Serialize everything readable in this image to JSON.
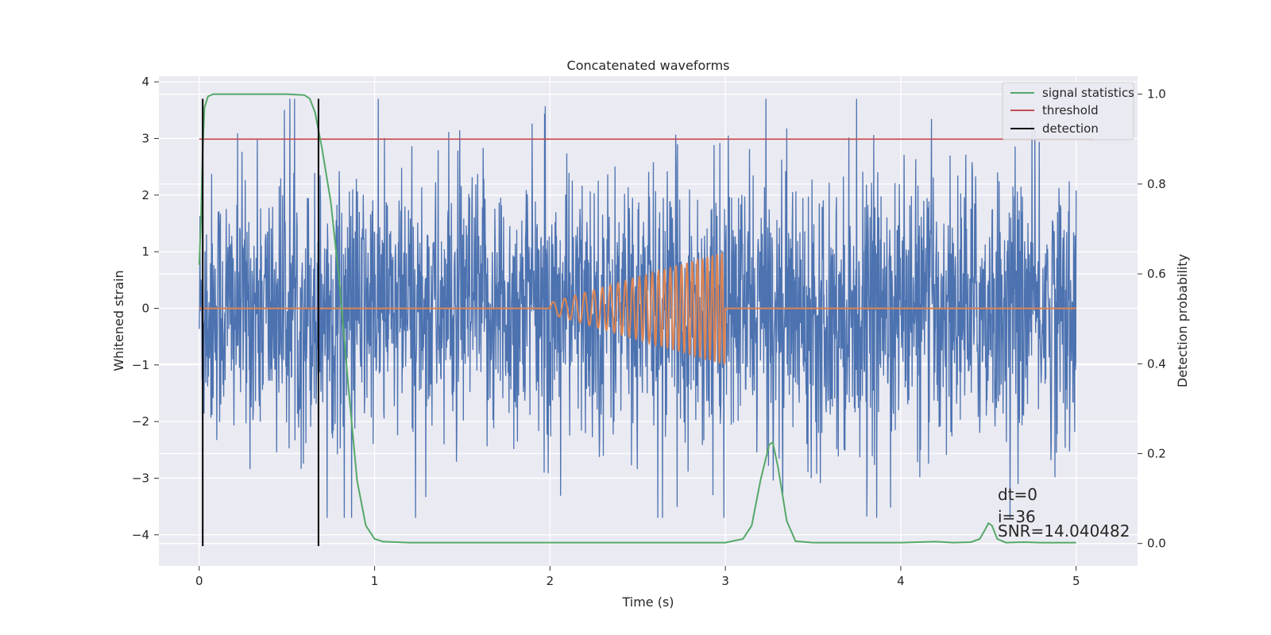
{
  "chart_data": {
    "type": "line",
    "title": "Concatenated waveforms",
    "xlabel": "Time (s)",
    "ylabel": "Whitened strain",
    "ylabel_right": "Detection probability",
    "xlim": [
      -0.23,
      5.35
    ],
    "ylim": [
      -4.55,
      4.1
    ],
    "ylim_right": [
      -0.05,
      1.04
    ],
    "xticks": [
      0,
      1,
      2,
      3,
      4,
      5
    ],
    "yticks": [
      -4,
      -3,
      -2,
      -1,
      0,
      1,
      2,
      3,
      4
    ],
    "yticks_right": [
      0.0,
      0.2,
      0.4,
      0.6,
      0.8,
      1.0
    ],
    "xtick_labels": [
      "0",
      "1",
      "2",
      "3",
      "4",
      "5"
    ],
    "ytick_labels": [
      "−4",
      "−3",
      "−2",
      "−1",
      "0",
      "1",
      "2",
      "3",
      "4"
    ],
    "ytick_labels_right": [
      "0.0",
      "0.2",
      "0.4",
      "0.6",
      "0.8",
      "1.0"
    ],
    "grid": true,
    "legend_position": "top-right",
    "colors": {
      "strain": "#4c72b0",
      "template": "#dd8452",
      "signal_statistics": "#55a868",
      "threshold": "#c44e52",
      "detection": "#000000",
      "background": "#eaeaf2",
      "grid": "#ffffff"
    },
    "legend": [
      {
        "label": "signal statistics",
        "color": "#55a868"
      },
      {
        "label": "threshold",
        "color": "#c44e52"
      },
      {
        "label": "detection",
        "color": "#000000"
      }
    ],
    "series": [
      {
        "axis": "left",
        "note": "noisy whitened strain, amplitude envelope",
        "x_range": [
          0,
          5
        ],
        "envelope_typical": 1.3,
        "envelope_peak": 3.7
      },
      {
        "axis": "left",
        "note": "injected chirp waveform",
        "x_range": [
          0,
          5
        ],
        "chirp_x_range": [
          2.0,
          3.0
        ],
        "chirp_amplitude_start": 0.1,
        "chirp_amplitude_end": 1.0
      },
      {
        "name": "signal statistics",
        "axis": "right",
        "x": [
          0.0,
          0.01,
          0.02,
          0.03,
          0.05,
          0.08,
          0.15,
          0.3,
          0.5,
          0.6,
          0.63,
          0.66,
          0.68,
          0.7,
          0.75,
          0.8,
          0.85,
          0.9,
          0.95,
          1.0,
          1.05,
          1.2,
          1.5,
          2.0,
          2.5,
          3.0,
          3.1,
          3.15,
          3.2,
          3.25,
          3.27,
          3.3,
          3.35,
          3.4,
          3.5,
          4.0,
          4.2,
          4.3,
          4.4,
          4.45,
          4.48,
          4.5,
          4.52,
          4.55,
          4.6,
          4.7,
          4.8,
          4.9,
          5.0
        ],
        "y": [
          0.62,
          0.72,
          0.88,
          0.97,
          0.995,
          1.0,
          1.0,
          1.0,
          1.0,
          0.998,
          0.99,
          0.96,
          0.92,
          0.88,
          0.76,
          0.58,
          0.35,
          0.14,
          0.04,
          0.01,
          0.004,
          0.002,
          0.002,
          0.002,
          0.002,
          0.002,
          0.01,
          0.04,
          0.14,
          0.22,
          0.225,
          0.17,
          0.05,
          0.005,
          0.002,
          0.002,
          0.004,
          0.002,
          0.003,
          0.01,
          0.03,
          0.045,
          0.04,
          0.01,
          0.002,
          0.003,
          0.002,
          0.002,
          0.002
        ]
      },
      {
        "name": "threshold",
        "axis": "right",
        "x": [
          0.0,
          5.1
        ],
        "y": [
          0.9,
          0.9
        ]
      }
    ],
    "detections": [
      0.02,
      0.68
    ],
    "detection_y_range": [
      -4.2,
      3.7
    ],
    "annotations": [
      "dt=0",
      "i=36",
      "SNR=14.040482"
    ]
  }
}
